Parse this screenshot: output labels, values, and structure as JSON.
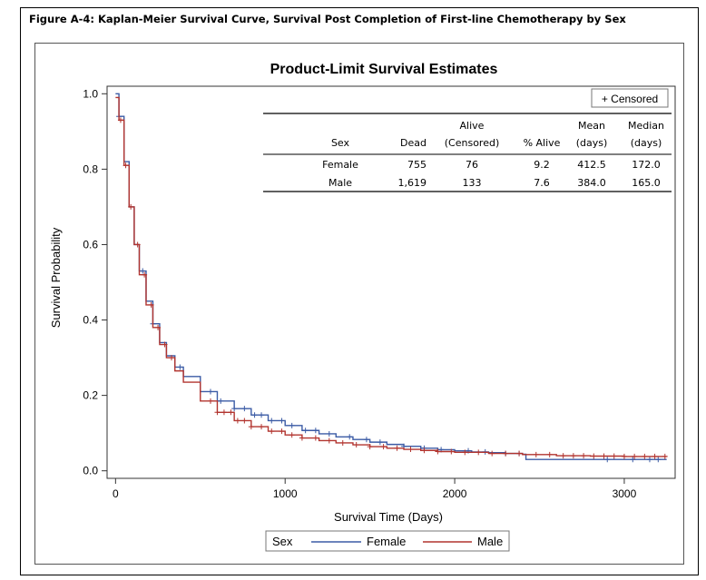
{
  "figure_caption": "Figure A-4: Kaplan-Meier Survival Curve, Survival Post Completion of First-line Chemotherapy by Sex",
  "chart_data": {
    "type": "line",
    "title": "Product-Limit Survival Estimates",
    "xlabel": "Survival Time (Days)",
    "ylabel": "Survival Probability",
    "xlim": [
      -50,
      3300
    ],
    "ylim": [
      -0.02,
      1.02
    ],
    "x_ticks": [
      0,
      1000,
      2000,
      3000
    ],
    "y_ticks": [
      0.0,
      0.2,
      0.4,
      0.6,
      0.8,
      1.0
    ],
    "x_tick_labels": [
      "0",
      "1000",
      "2000",
      "3000"
    ],
    "y_tick_labels": [
      "0.0",
      "0.2",
      "0.4",
      "0.6",
      "0.8",
      "1.0"
    ],
    "censored_legend": "+ Censored",
    "legend": {
      "title": "Sex",
      "position": "bottom",
      "entries": [
        "Female",
        "Male"
      ]
    },
    "series": [
      {
        "name": "Female",
        "color": "#3B5BA5",
        "x": [
          0,
          20,
          50,
          80,
          110,
          140,
          180,
          220,
          260,
          300,
          350,
          400,
          500,
          600,
          700,
          800,
          900,
          1000,
          1100,
          1200,
          1300,
          1400,
          1500,
          1600,
          1700,
          1800,
          1900,
          2000,
          2100,
          2200,
          2300,
          2400,
          2420,
          2600,
          2800,
          3000,
          3200,
          3250
        ],
        "y": [
          1.0,
          0.94,
          0.82,
          0.7,
          0.6,
          0.53,
          0.45,
          0.39,
          0.34,
          0.305,
          0.275,
          0.25,
          0.21,
          0.185,
          0.165,
          0.148,
          0.133,
          0.12,
          0.107,
          0.098,
          0.09,
          0.083,
          0.076,
          0.07,
          0.065,
          0.06,
          0.056,
          0.053,
          0.05,
          0.048,
          0.046,
          0.044,
          0.03,
          0.03,
          0.03,
          0.03,
          0.03,
          0.03
        ],
        "censored_x": [
          20,
          160,
          220,
          380,
          560,
          620,
          700,
          760,
          820,
          860,
          920,
          980,
          1040,
          1120,
          1180,
          1260,
          1380,
          1480,
          1560,
          1700,
          1820,
          1920,
          2080,
          2180,
          2300,
          2380,
          2900,
          3050,
          3150,
          3200
        ]
      },
      {
        "name": "Male",
        "color": "#B2342F",
        "x": [
          0,
          20,
          50,
          80,
          110,
          140,
          180,
          220,
          260,
          300,
          350,
          400,
          500,
          600,
          700,
          800,
          900,
          1000,
          1100,
          1200,
          1300,
          1400,
          1500,
          1600,
          1700,
          1800,
          1900,
          2000,
          2200,
          2400,
          2600,
          2800,
          3000,
          3250
        ],
        "y": [
          0.99,
          0.93,
          0.81,
          0.7,
          0.6,
          0.52,
          0.44,
          0.38,
          0.335,
          0.3,
          0.265,
          0.235,
          0.185,
          0.155,
          0.133,
          0.117,
          0.105,
          0.095,
          0.087,
          0.08,
          0.074,
          0.069,
          0.064,
          0.06,
          0.057,
          0.054,
          0.051,
          0.049,
          0.046,
          0.043,
          0.04,
          0.039,
          0.038,
          0.038
        ],
        "censored_x": [
          30,
          60,
          90,
          130,
          170,
          210,
          250,
          290,
          330,
          560,
          600,
          640,
          680,
          720,
          760,
          800,
          860,
          920,
          980,
          1040,
          1100,
          1180,
          1260,
          1340,
          1420,
          1500,
          1580,
          1660,
          1740,
          1820,
          1900,
          1980,
          2060,
          2140,
          2220,
          2300,
          2380,
          2480,
          2560,
          2640,
          2700,
          2760,
          2820,
          2880,
          2940,
          3000,
          3060,
          3120,
          3180,
          3240
        ]
      }
    ]
  },
  "inset_table": {
    "header_row1": [
      "",
      "",
      "Alive",
      "",
      "Mean",
      "Median"
    ],
    "header_row2": [
      "Sex",
      "Dead",
      "(Censored)",
      "% Alive",
      "(days)",
      "(days)"
    ],
    "rows": [
      [
        "Female",
        "755",
        "76",
        "9.2",
        "412.5",
        "172.0"
      ],
      [
        "Male",
        "1,619",
        "133",
        "7.6",
        "384.0",
        "165.0"
      ]
    ]
  }
}
